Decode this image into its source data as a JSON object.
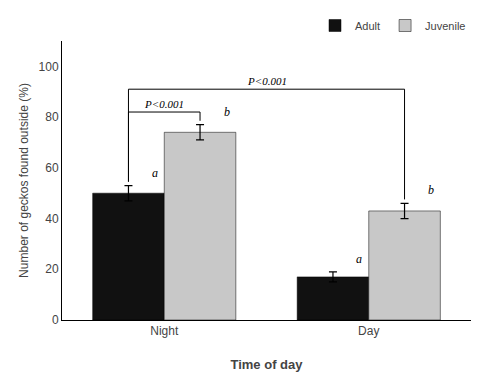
{
  "chart_data": {
    "type": "bar",
    "xlabel": "Time of day",
    "ylabel": "Number of geckos found outside (%)",
    "categories": [
      "Night",
      "Day"
    ],
    "series": [
      {
        "name": "Adult",
        "color": "#111111",
        "values": [
          50,
          17
        ],
        "errors": [
          3,
          2
        ]
      },
      {
        "name": "Juvenile",
        "color": "#C8C8C8",
        "values": [
          74,
          43
        ],
        "errors": [
          3,
          3
        ]
      }
    ],
    "ylim": [
      0,
      110
    ],
    "yticks": [
      0,
      20,
      40,
      60,
      80,
      100
    ],
    "grid": false,
    "legend": "upper right",
    "annotations": [
      {
        "text": "a",
        "category": "Night",
        "series": "Adult"
      },
      {
        "text": "b",
        "category": "Night",
        "series": "Juvenile"
      },
      {
        "text": "a",
        "category": "Day",
        "series": "Adult"
      },
      {
        "text": "b",
        "category": "Day",
        "series": "Juvenile"
      }
    ],
    "brackets": [
      {
        "text": "P<0.001",
        "y": 82,
        "from": {
          "category": "Night",
          "series": "Adult"
        },
        "to": {
          "category": "Night",
          "series": "Juvenile"
        }
      },
      {
        "text": "P<0.001",
        "y": 91,
        "from": {
          "category": "Night",
          "series": "Adult"
        },
        "to": {
          "category": "Day",
          "series": "Juvenile"
        }
      }
    ]
  }
}
